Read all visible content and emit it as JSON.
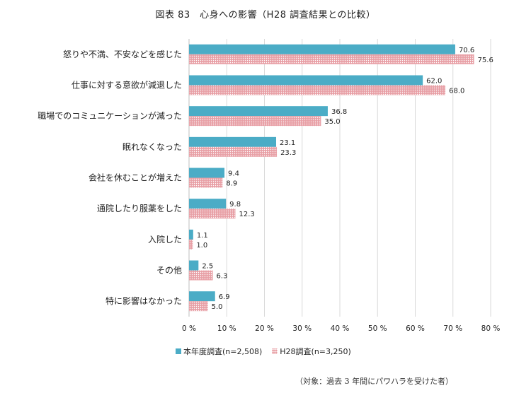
{
  "title": "図表 83　心身への影響（H28 調査結果との比較）",
  "legend": {
    "current": "本年度調査(n=2,508)",
    "h28": "H28調査(n=3,250)"
  },
  "footnote": "（対象：過去 3 年間にパワハラを受けた者）",
  "colors": {
    "current": "#4bacc6",
    "h28": "#e8a0a6"
  },
  "chart_data": {
    "type": "bar",
    "orientation": "horizontal",
    "categories": [
      "怒りや不満、不安などを感じた",
      "仕事に対する意欲が減退した",
      "職場でのコミュニケーションが減った",
      "眠れなくなった",
      "会社を休むことが増えた",
      "通院したり服薬をした",
      "入院した",
      "その他",
      "特に影響はなかった"
    ],
    "series": [
      {
        "name": "本年度調査(n=2,508)",
        "values": [
          70.6,
          62.0,
          36.8,
          23.1,
          9.4,
          9.8,
          1.1,
          2.5,
          6.9
        ],
        "labels": [
          "70.6",
          "62.0",
          "36.8",
          "23.1",
          "9.4",
          "9.8",
          "1.1",
          "2.5",
          "6.9"
        ]
      },
      {
        "name": "H28調査(n=3,250)",
        "values": [
          75.6,
          68.0,
          35.0,
          23.3,
          8.9,
          12.3,
          1.0,
          6.3,
          5.0
        ],
        "labels": [
          "75.6",
          "68.0",
          "35.0",
          "23.3",
          "8.9",
          "12.3",
          "1.0",
          "6.3",
          "5.0"
        ]
      }
    ],
    "xlim": [
      0,
      80
    ],
    "xticks": [
      "0 %",
      "10 %",
      "20 %",
      "30 %",
      "40 %",
      "50 %",
      "60 %",
      "70 %",
      "80 %"
    ],
    "grid": true,
    "legend_position": "bottom"
  }
}
